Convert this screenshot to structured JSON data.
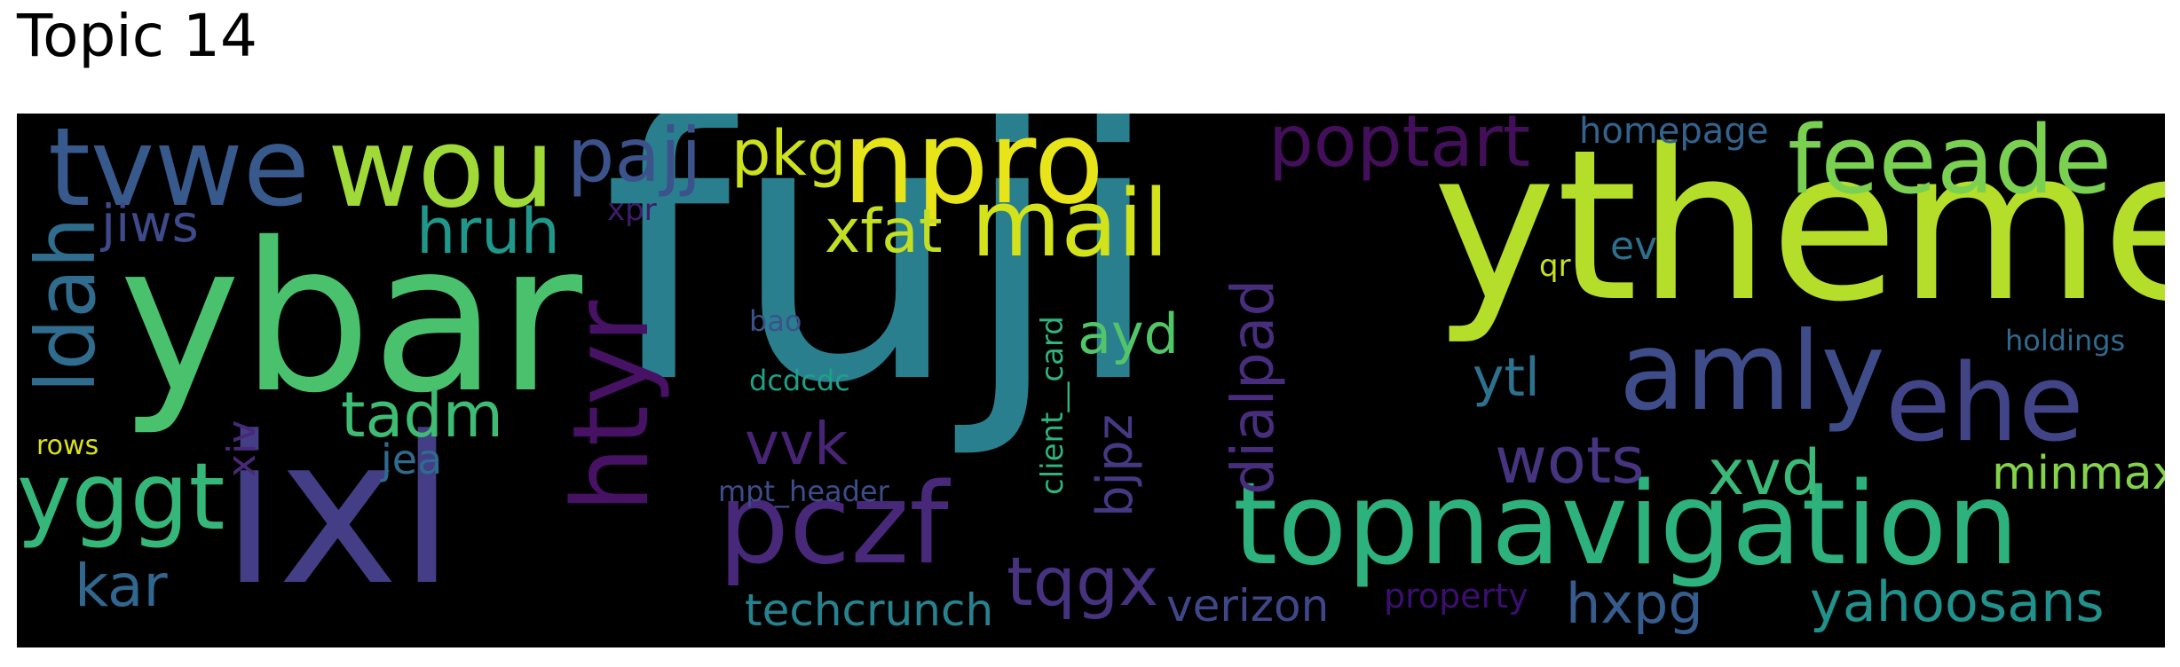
{
  "title": "Topic 14",
  "words": [
    {
      "text": "fuji",
      "color": "#2a7f8e",
      "orientation": "horizontal"
    },
    {
      "text": "ytheme",
      "color": "#b5de2b",
      "orientation": "horizontal"
    },
    {
      "text": "ybar",
      "color": "#4ac16d",
      "orientation": "horizontal"
    },
    {
      "text": "ixl",
      "color": "#433e85",
      "orientation": "horizontal"
    },
    {
      "text": "topnavigation",
      "color": "#2db27d",
      "orientation": "horizontal"
    },
    {
      "text": "npro",
      "color": "#e7e419",
      "orientation": "horizontal"
    },
    {
      "text": "tvwe",
      "color": "#38598c",
      "orientation": "horizontal"
    },
    {
      "text": "wou",
      "color": "#a0da39",
      "orientation": "horizontal"
    },
    {
      "text": "amly",
      "color": "#3e4c8a",
      "orientation": "horizontal"
    },
    {
      "text": "ehe",
      "color": "#414487",
      "orientation": "horizontal"
    },
    {
      "text": "feeade",
      "color": "#7ad151",
      "orientation": "horizontal"
    },
    {
      "text": "mail",
      "color": "#d2e21b",
      "orientation": "horizontal"
    },
    {
      "text": "pczf",
      "color": "#482878",
      "orientation": "horizontal"
    },
    {
      "text": "htyr",
      "color": "#471164",
      "orientation": "vertical"
    },
    {
      "text": "poptart",
      "color": "#440f5a",
      "orientation": "horizontal"
    },
    {
      "text": "dialpad",
      "color": "#472d7b",
      "orientation": "vertical"
    },
    {
      "text": "ldah",
      "color": "#2f6c8e",
      "orientation": "vertical"
    },
    {
      "text": "yggt",
      "color": "#35b779",
      "orientation": "horizontal"
    },
    {
      "text": "pajj",
      "color": "#3b528b",
      "orientation": "horizontal"
    },
    {
      "text": "pkg",
      "color": "#cde11d",
      "orientation": "horizontal"
    },
    {
      "text": "xfat",
      "color": "#c2df23",
      "orientation": "horizontal"
    },
    {
      "text": "hruh",
      "color": "#1f988b",
      "orientation": "horizontal"
    },
    {
      "text": "jiws",
      "color": "#3e4a89",
      "orientation": "horizontal"
    },
    {
      "text": "tadm",
      "color": "#3fbc73",
      "orientation": "horizontal"
    },
    {
      "text": "vvk",
      "color": "#482475",
      "orientation": "horizontal"
    },
    {
      "text": "ayd",
      "color": "#52c569",
      "orientation": "horizontal"
    },
    {
      "text": "tqgx",
      "color": "#46327e",
      "orientation": "horizontal"
    },
    {
      "text": "wots",
      "color": "#463480",
      "orientation": "horizontal"
    },
    {
      "text": "xvd",
      "color": "#3aba76",
      "orientation": "horizontal"
    },
    {
      "text": "hxpg",
      "color": "#365c8d",
      "orientation": "horizontal"
    },
    {
      "text": "yahoosans",
      "color": "#21918c",
      "orientation": "horizontal"
    },
    {
      "text": "kar",
      "color": "#31668e",
      "orientation": "horizontal"
    },
    {
      "text": "techcrunch",
      "color": "#26828e",
      "orientation": "horizontal"
    },
    {
      "text": "verizon",
      "color": "#3f4788",
      "orientation": "horizontal"
    },
    {
      "text": "bjpz",
      "color": "#443983",
      "orientation": "vertical"
    },
    {
      "text": "ytl",
      "color": "#2c728e",
      "orientation": "horizontal"
    },
    {
      "text": "minmax",
      "color": "#84d44b",
      "orientation": "horizontal"
    },
    {
      "text": "jea",
      "color": "#2f6b8e",
      "orientation": "horizontal"
    },
    {
      "text": "property",
      "color": "#3b0f70",
      "orientation": "horizontal"
    },
    {
      "text": "homepage",
      "color": "#33638d",
      "orientation": "horizontal"
    },
    {
      "text": "xiv",
      "color": "#482979",
      "orientation": "vertical"
    },
    {
      "text": "client__card",
      "color": "#2fb47c",
      "orientation": "vertical"
    },
    {
      "text": "ev",
      "color": "#2e6f8e",
      "orientation": "horizontal"
    },
    {
      "text": "holdings",
      "color": "#306a8e",
      "orientation": "horizontal"
    },
    {
      "text": "xpr",
      "color": "#3f1c6b",
      "orientation": "horizontal"
    },
    {
      "text": "bao",
      "color": "#3b528b",
      "orientation": "horizontal"
    },
    {
      "text": "dcdcdc",
      "color": "#1fa088",
      "orientation": "horizontal"
    },
    {
      "text": "mpt_header",
      "color": "#3d4d8a",
      "orientation": "horizontal"
    },
    {
      "text": "qr",
      "color": "#c8e020",
      "orientation": "horizontal"
    },
    {
      "text": "rows",
      "color": "#d8e219",
      "orientation": "horizontal"
    }
  ]
}
